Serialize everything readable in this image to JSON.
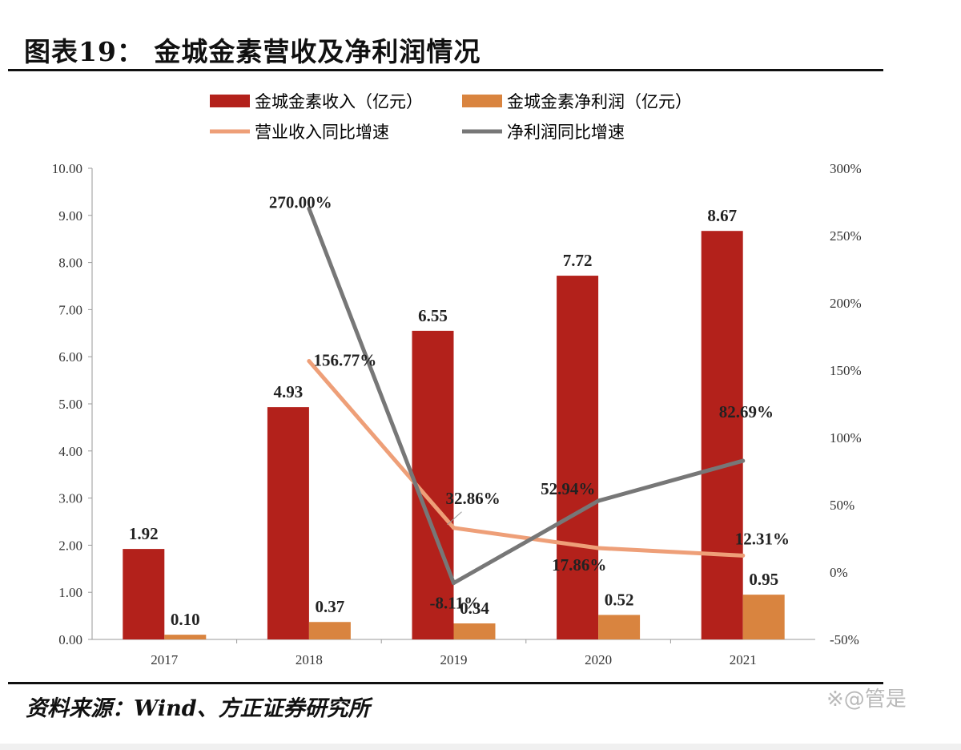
{
  "title": "图表19：    金城金素营收及净利润情况",
  "source": "资料来源：Wind、方正证券研究所",
  "watermark": "※@管是",
  "chart_data": {
    "type": "bar",
    "categories": [
      "2017",
      "2018",
      "2019",
      "2020",
      "2021"
    ],
    "series": [
      {
        "name": "金城金素收入（亿元）",
        "kind": "bar",
        "axis": "left",
        "color": "#b3211b",
        "values": [
          1.92,
          4.93,
          6.55,
          7.72,
          8.67
        ],
        "labels": [
          "1.92",
          "4.93",
          "6.55",
          "7.72",
          "8.67"
        ]
      },
      {
        "name": "金城金素净利润（亿元）",
        "kind": "bar",
        "axis": "left",
        "color": "#d9843f",
        "values": [
          0.1,
          0.37,
          0.34,
          0.52,
          0.95
        ],
        "labels": [
          "0.10",
          "0.37",
          "0.34",
          "0.52",
          "0.95"
        ]
      },
      {
        "name": "营业收入同比增速",
        "kind": "line",
        "axis": "right",
        "color": "#ee9f78",
        "values": [
          null,
          156.77,
          32.86,
          17.86,
          12.31
        ],
        "labels": [
          null,
          "156.77%",
          "32.86%",
          "17.86%",
          "12.31%"
        ]
      },
      {
        "name": "净利润同比增速",
        "kind": "line",
        "axis": "right",
        "color": "#777777",
        "values": [
          null,
          270.0,
          -8.11,
          52.94,
          82.69
        ],
        "labels": [
          null,
          "270.00%",
          "-8.11%",
          "52.94%",
          "82.69%"
        ]
      }
    ],
    "y_left": {
      "range": [
        0,
        10
      ],
      "ticks": [
        "0.00",
        "1.00",
        "2.00",
        "3.00",
        "4.00",
        "5.00",
        "6.00",
        "7.00",
        "8.00",
        "9.00",
        "10.00"
      ]
    },
    "y_right": {
      "range": [
        -50,
        300
      ],
      "ticks": [
        "-50%",
        "0%",
        "50%",
        "100%",
        "150%",
        "200%",
        "250%",
        "300%"
      ]
    },
    "grid": false,
    "legend_position": "top"
  }
}
